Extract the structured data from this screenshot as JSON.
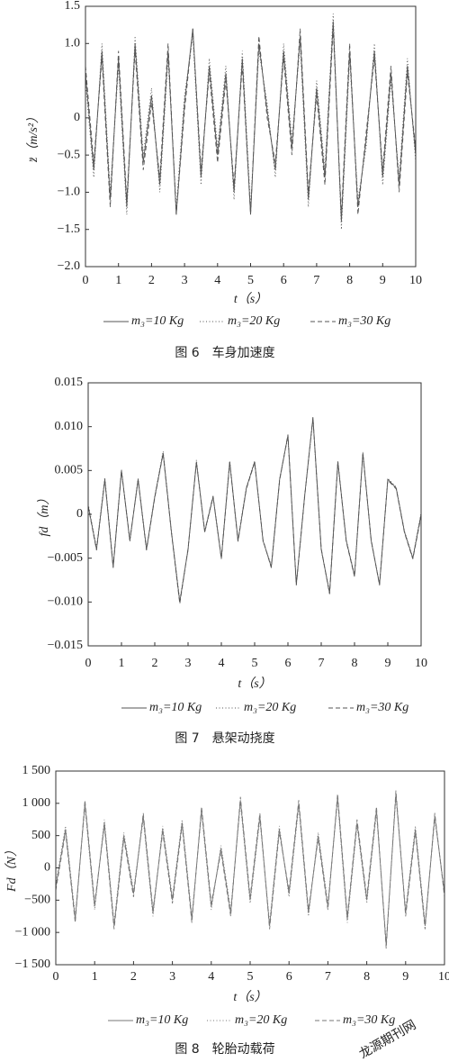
{
  "chart_data": [
    {
      "type": "line",
      "x_label": "t（s）",
      "y_label": "z̈（m/s²）",
      "caption": "图 6　车身加速度",
      "xlim": [
        0,
        10
      ],
      "xticks": [
        0,
        1,
        2,
        3,
        4,
        5,
        6,
        7,
        8,
        9,
        10
      ],
      "ylim": [
        -2,
        1.5
      ],
      "yticks": [
        1.5,
        {
          "value": 1,
          "label": "1.0"
        },
        0,
        {
          "value": -0.5,
          "label": "−0.5"
        },
        {
          "value": -1,
          "label": "−1.0"
        },
        {
          "value": -1.5,
          "label": "−1.5"
        },
        {
          "value": -2,
          "label": "−2.0"
        }
      ],
      "x": [
        0,
        0.25,
        0.5,
        0.75,
        1,
        1.25,
        1.5,
        1.75,
        2,
        2.25,
        2.5,
        2.75,
        3,
        3.25,
        3.5,
        3.75,
        4,
        4.25,
        4.5,
        4.75,
        5,
        5.25,
        5.5,
        5.75,
        6,
        6.25,
        6.5,
        6.75,
        7,
        7.25,
        7.5,
        7.75,
        8,
        8.25,
        8.5,
        8.75,
        9,
        9.25,
        9.5,
        9.75,
        10
      ],
      "series": [
        {
          "name": "m₃=10 Kg",
          "color": "#555555",
          "style": "solid",
          "values": [
            0.6,
            -0.7,
            0.9,
            -1.1,
            0.8,
            -1.2,
            1.0,
            -0.6,
            0.3,
            -0.9,
            0.9,
            -1.3,
            0.2,
            1.2,
            -0.8,
            0.7,
            -0.5,
            0.6,
            -1.0,
            0.8,
            -1.3,
            1.0,
            0.1,
            -0.7,
            0.9,
            -0.4,
            1.1,
            -1.1,
            0.4,
            -0.8,
            1.3,
            -1.4,
            0.9,
            -1.2,
            -0.3,
            0.9,
            -0.8,
            0.6,
            -0.9,
            0.7,
            -0.5
          ]
        },
        {
          "name": "m₃=20 Kg",
          "color": "#555555",
          "style": "dotted",
          "values": [
            0.5,
            -0.8,
            1.0,
            -1.0,
            0.7,
            -1.3,
            1.1,
            -0.5,
            0.4,
            -1.0,
            0.8,
            -1.2,
            0.3,
            1.1,
            -0.9,
            0.8,
            -0.4,
            0.7,
            -1.1,
            0.9,
            -1.2,
            0.9,
            0.2,
            -0.8,
            1.0,
            -0.3,
            1.0,
            -1.2,
            0.5,
            -0.7,
            1.4,
            -1.5,
            0.8,
            -1.1,
            -0.4,
            1.0,
            -0.9,
            0.5,
            -0.8,
            0.8,
            -0.6
          ]
        },
        {
          "name": "m₃=30 Kg",
          "color": "#555555",
          "style": "dashed",
          "values": [
            0.7,
            -0.6,
            0.8,
            -1.2,
            0.9,
            -1.1,
            0.9,
            -0.7,
            0.2,
            -0.8,
            1.0,
            -1.3,
            0.1,
            1.2,
            -0.7,
            0.6,
            -0.6,
            0.5,
            -0.9,
            0.7,
            -1.3,
            1.1,
            0.0,
            -0.6,
            0.8,
            -0.5,
            1.2,
            -1.0,
            0.3,
            -0.9,
            1.2,
            -1.3,
            1.0,
            -1.3,
            -0.2,
            0.8,
            -0.7,
            0.7,
            -1.0,
            0.6,
            -0.4
          ]
        }
      ]
    },
    {
      "type": "line",
      "x_label": "t（s）",
      "y_label": "fd（m）",
      "caption": "图 7　悬架动挠度",
      "xlim": [
        0,
        10
      ],
      "xticks": [
        0,
        1,
        2,
        3,
        4,
        5,
        6,
        7,
        8,
        9,
        10
      ],
      "ylim": [
        -0.015,
        0.015
      ],
      "yticks": [
        0.015,
        {
          "value": 0.01,
          "label": "0.010"
        },
        0.005,
        0,
        {
          "value": -0.005,
          "label": "−0.005"
        },
        {
          "value": -0.01,
          "label": "−0.010"
        },
        {
          "value": -0.015,
          "label": "−0.015"
        }
      ],
      "x": [
        0,
        0.25,
        0.5,
        0.75,
        1,
        1.25,
        1.5,
        1.75,
        2,
        2.25,
        2.5,
        2.75,
        3,
        3.25,
        3.5,
        3.75,
        4,
        4.25,
        4.5,
        4.75,
        5,
        5.25,
        5.5,
        5.75,
        6,
        6.25,
        6.5,
        6.75,
        7,
        7.25,
        7.5,
        7.75,
        8,
        8.25,
        8.5,
        8.75,
        9,
        9.25,
        9.5,
        9.75,
        10
      ],
      "series": [
        {
          "name": "m₃=10 Kg",
          "color": "#555555",
          "style": "solid",
          "values": [
            0.001,
            -0.004,
            0.004,
            -0.006,
            0.005,
            -0.003,
            0.004,
            -0.004,
            0.002,
            0.007,
            -0.002,
            -0.01,
            -0.004,
            0.006,
            -0.002,
            0.002,
            -0.005,
            0.006,
            -0.003,
            0.003,
            0.006,
            -0.003,
            -0.006,
            0.004,
            0.009,
            -0.008,
            0.002,
            0.011,
            -0.004,
            -0.009,
            0.006,
            -0.003,
            -0.007,
            0.007,
            -0.003,
            -0.008,
            0.004,
            0.003,
            -0.002,
            -0.005,
            0
          ]
        },
        {
          "name": "m₃=20 Kg",
          "color": "#555555",
          "style": "dotted",
          "values": [
            0.0012,
            -0.0038,
            0.0042,
            -0.0058,
            0.0051,
            -0.0031,
            0.0041,
            -0.0039,
            0.0021,
            0.0072,
            -0.0019,
            -0.0098,
            -0.0041,
            0.0062,
            -0.0021,
            0.0019,
            -0.0049,
            0.0061,
            -0.0029,
            0.0031,
            0.0061,
            -0.0031,
            -0.0058,
            0.0041,
            0.0088,
            -0.0079,
            0.0021,
            0.0108,
            -0.0041,
            -0.0088,
            0.0061,
            -0.0029,
            -0.0069,
            0.0071,
            -0.0031,
            -0.0079,
            0.0041,
            0.0031,
            -0.0019,
            -0.0049,
            0.0002
          ]
        },
        {
          "name": "m₃=30 Kg",
          "color": "#555555",
          "style": "dashed",
          "values": [
            0.0009,
            -0.0041,
            0.0039,
            -0.0061,
            0.0049,
            -0.0029,
            0.0039,
            -0.0041,
            0.0019,
            0.0069,
            -0.0021,
            -0.0102,
            -0.0039,
            0.0059,
            -0.0019,
            0.0021,
            -0.0051,
            0.0059,
            -0.0031,
            0.0029,
            0.0059,
            -0.0029,
            -0.0061,
            0.0039,
            0.0091,
            -0.0081,
            0.0019,
            0.0111,
            -0.0039,
            -0.0091,
            0.0059,
            -0.0031,
            -0.0071,
            0.0069,
            -0.0029,
            -0.0081,
            0.0039,
            0.0029,
            -0.0021,
            -0.0051,
            -0.0002
          ]
        }
      ]
    },
    {
      "type": "line",
      "x_label": "t（s）",
      "y_label": "Fd（N）",
      "caption": "图 8　轮胎动载荷",
      "watermark": "龙源期刊网",
      "xlim": [
        0,
        10
      ],
      "xticks": [
        0,
        1,
        2,
        3,
        4,
        5,
        6,
        7,
        8,
        9,
        10
      ],
      "ylim": [
        -1500,
        1500
      ],
      "yticks": [
        {
          "value": 1500,
          "label": "1 500"
        },
        {
          "value": 1000,
          "label": "1 000"
        },
        500,
        0,
        {
          "value": -500,
          "label": "−500"
        },
        {
          "value": -1000,
          "label": "−1 000"
        },
        {
          "value": -1500,
          "label": "−1 500"
        }
      ],
      "x": [
        0,
        0.25,
        0.5,
        0.75,
        1,
        1.25,
        1.5,
        1.75,
        2,
        2.25,
        2.5,
        2.75,
        3,
        3.25,
        3.5,
        3.75,
        4,
        4.25,
        4.5,
        4.75,
        5,
        5.25,
        5.5,
        5.75,
        6,
        6.25,
        6.5,
        6.75,
        7,
        7.25,
        7.5,
        7.75,
        8,
        8.25,
        8.5,
        8.75,
        9,
        9.25,
        9.5,
        9.75,
        10
      ],
      "series": [
        {
          "name": "m₃=10 Kg",
          "color": "#777777",
          "style": "solid",
          "values": [
            -300,
            600,
            -800,
            1000,
            -600,
            700,
            -900,
            500,
            -400,
            800,
            -700,
            600,
            -500,
            700,
            -800,
            900,
            -600,
            300,
            -700,
            1050,
            -500,
            800,
            -900,
            600,
            -400,
            1000,
            -700,
            500,
            -600,
            1100,
            -800,
            700,
            -500,
            900,
            -1200,
            1150,
            -700,
            600,
            -900,
            800,
            -400
          ]
        },
        {
          "name": "m₃=20 Kg",
          "color": "#777777",
          "style": "dotted",
          "values": [
            -250,
            650,
            -750,
            950,
            -650,
            750,
            -850,
            550,
            -350,
            750,
            -750,
            650,
            -450,
            750,
            -750,
            850,
            -650,
            350,
            -650,
            1000,
            -550,
            750,
            -850,
            650,
            -450,
            950,
            -750,
            550,
            -550,
            1050,
            -850,
            650,
            -550,
            850,
            -1150,
            1100,
            -650,
            650,
            -850,
            750,
            -350
          ]
        },
        {
          "name": "m₃=30 Kg",
          "color": "#777777",
          "style": "dashed",
          "values": [
            -350,
            550,
            -850,
            1050,
            -550,
            650,
            -950,
            450,
            -450,
            850,
            -650,
            550,
            -550,
            650,
            -850,
            950,
            -550,
            250,
            -750,
            1100,
            -450,
            850,
            -950,
            550,
            -350,
            1050,
            -650,
            450,
            -650,
            1150,
            -750,
            750,
            -450,
            950,
            -1250,
            1200,
            -750,
            550,
            -950,
            850,
            -450
          ]
        }
      ]
    }
  ]
}
